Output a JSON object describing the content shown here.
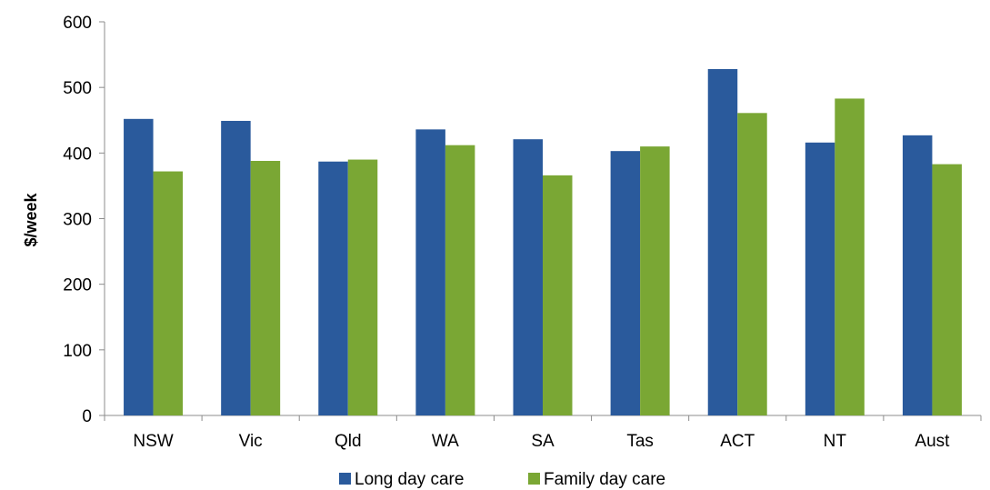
{
  "chart_data": {
    "type": "bar",
    "title": "",
    "xlabel": "",
    "ylabel": "$/week",
    "ylim": [
      0,
      600
    ],
    "yticks": [
      0,
      100,
      200,
      300,
      400,
      500,
      600
    ],
    "grid": false,
    "legend_position": "bottom",
    "categories": [
      "NSW",
      "Vic",
      "Qld",
      "WA",
      "SA",
      "Tas",
      "ACT",
      "NT",
      "Aust"
    ],
    "series": [
      {
        "name": "Long day care",
        "color": "#2a5a9c",
        "values": [
          452,
          449,
          387,
          436,
          421,
          403,
          528,
          416,
          427
        ]
      },
      {
        "name": "Family day care",
        "color": "#7aa734",
        "values": [
          372,
          388,
          390,
          412,
          366,
          410,
          461,
          483,
          383
        ]
      }
    ]
  }
}
